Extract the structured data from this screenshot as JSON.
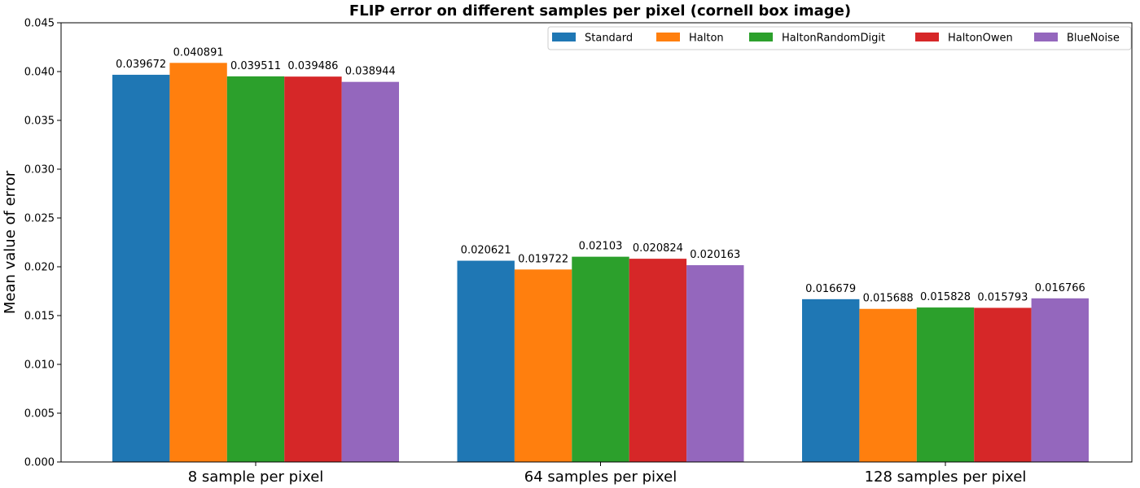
{
  "chart_data": {
    "type": "bar",
    "title": "FLIP error on different samples per pixel (cornell box image)",
    "xlabel": "",
    "ylabel": "Mean value of error",
    "ylim": [
      0,
      0.045
    ],
    "yticks": [
      "0.000",
      "0.005",
      "0.010",
      "0.015",
      "0.020",
      "0.025",
      "0.030",
      "0.035",
      "0.040",
      "0.045"
    ],
    "yticks_values": [
      0,
      0.005,
      0.01,
      0.015,
      0.02,
      0.025,
      0.03,
      0.035,
      0.04,
      0.045
    ],
    "categories": [
      "8 sample per pixel",
      "64 samples per pixel",
      "128 samples per pixel"
    ],
    "legend_position": "top-right",
    "grid": false,
    "series": [
      {
        "name": "Standard",
        "color": "#1f77b4",
        "values": [
          0.039672,
          0.020621,
          0.016679
        ],
        "labels": [
          "0.039672",
          "0.020621",
          "0.016679"
        ]
      },
      {
        "name": "Halton",
        "color": "#ff7f0e",
        "values": [
          0.040891,
          0.019722,
          0.015688
        ],
        "labels": [
          "0.040891",
          "0.019722",
          "0.015688"
        ]
      },
      {
        "name": "HaltonRandomDigit",
        "color": "#2ca02c",
        "values": [
          0.039511,
          0.02103,
          0.015828
        ],
        "labels": [
          "0.039511",
          "0.02103",
          "0.015828"
        ]
      },
      {
        "name": "HaltonOwen",
        "color": "#d62728",
        "values": [
          0.039486,
          0.020824,
          0.015793
        ],
        "labels": [
          "0.039486",
          "0.020824",
          "0.015793"
        ]
      },
      {
        "name": "BlueNoise",
        "color": "#9467bd",
        "values": [
          0.038944,
          0.020163,
          0.016766
        ],
        "labels": [
          "0.038944",
          "0.020163",
          "0.016766"
        ]
      }
    ]
  }
}
